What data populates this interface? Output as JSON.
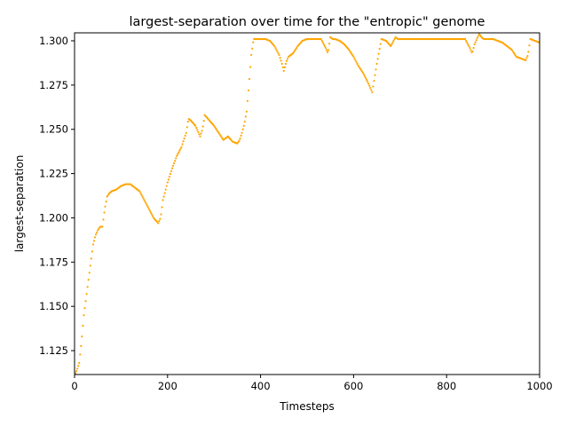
{
  "chart_data": {
    "type": "scatter",
    "title": "largest-separation over time for the \"entropic\" genome",
    "xlabel": "Timesteps",
    "ylabel": "largest-separation",
    "xlim": [
      0,
      1000
    ],
    "ylim": [
      1.1115,
      1.3045
    ],
    "xticks": [
      0,
      200,
      400,
      600,
      800,
      1000
    ],
    "yticks": [
      1.125,
      1.15,
      1.175,
      1.2,
      1.225,
      1.25,
      1.275,
      1.3
    ],
    "xtick_labels": [
      "0",
      "200",
      "400",
      "600",
      "800",
      "1000"
    ],
    "ytick_labels": [
      "1.125",
      "1.150",
      "1.175",
      "1.200",
      "1.225",
      "1.250",
      "1.275",
      "1.300"
    ],
    "grid": false,
    "series": [
      {
        "color": "#FFA500",
        "marker": "dot",
        "x": [
          0,
          5,
          10,
          15,
          20,
          25,
          30,
          35,
          40,
          45,
          50,
          55,
          60,
          65,
          70,
          75,
          80,
          90,
          100,
          110,
          120,
          130,
          140,
          150,
          160,
          170,
          180,
          185,
          190,
          200,
          210,
          220,
          230,
          240,
          245,
          250,
          260,
          270,
          275,
          280,
          290,
          300,
          310,
          320,
          330,
          340,
          350,
          355,
          360,
          365,
          370,
          375,
          380,
          385,
          390,
          400,
          410,
          420,
          430,
          440,
          445,
          450,
          455,
          460,
          470,
          480,
          490,
          500,
          510,
          520,
          530,
          540,
          545,
          550,
          555,
          560,
          570,
          580,
          590,
          600,
          610,
          620,
          630,
          640,
          650,
          660,
          670,
          680,
          690,
          695,
          700,
          720,
          740,
          760,
          780,
          800,
          820,
          840,
          850,
          855,
          860,
          865,
          870,
          875,
          880,
          890,
          900,
          910,
          920,
          930,
          940,
          950,
          960,
          970,
          975,
          980,
          990,
          1000
        ],
        "y": [
          1.111,
          1.114,
          1.118,
          1.13,
          1.145,
          1.155,
          1.165,
          1.175,
          1.185,
          1.19,
          1.193,
          1.195,
          1.195,
          1.205,
          1.212,
          1.214,
          1.215,
          1.216,
          1.218,
          1.219,
          1.219,
          1.217,
          1.215,
          1.21,
          1.205,
          1.2,
          1.197,
          1.2,
          1.21,
          1.22,
          1.228,
          1.235,
          1.24,
          1.248,
          1.256,
          1.255,
          1.252,
          1.246,
          1.25,
          1.258,
          1.255,
          1.252,
          1.248,
          1.244,
          1.246,
          1.243,
          1.242,
          1.244,
          1.248,
          1.253,
          1.26,
          1.275,
          1.292,
          1.301,
          1.301,
          1.301,
          1.301,
          1.3,
          1.297,
          1.292,
          1.288,
          1.283,
          1.288,
          1.291,
          1.293,
          1.297,
          1.3,
          1.301,
          1.301,
          1.301,
          1.301,
          1.296,
          1.293,
          1.302,
          1.301,
          1.301,
          1.3,
          1.298,
          1.295,
          1.291,
          1.286,
          1.282,
          1.277,
          1.271,
          1.287,
          1.301,
          1.3,
          1.297,
          1.302,
          1.301,
          1.301,
          1.301,
          1.301,
          1.301,
          1.301,
          1.301,
          1.301,
          1.301,
          1.296,
          1.293,
          1.298,
          1.301,
          1.304,
          1.302,
          1.301,
          1.301,
          1.301,
          1.3,
          1.299,
          1.297,
          1.295,
          1.291,
          1.29,
          1.289,
          1.292,
          1.301,
          1.3,
          1.299
        ]
      }
    ]
  }
}
